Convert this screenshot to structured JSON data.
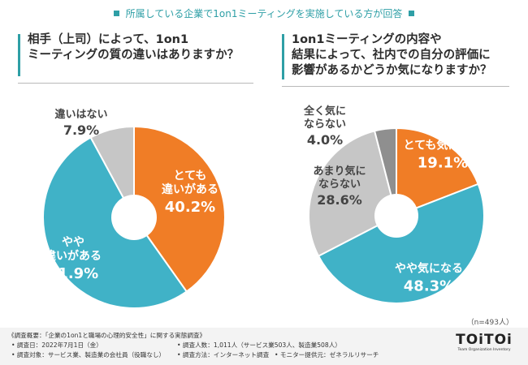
{
  "header": {
    "title": "所属している企業で1on1ミーティングを実施している方が回答"
  },
  "charts": [
    {
      "question_lines": [
        "相手（上司）によって、1on1",
        "ミーティングの質の違いはありますか？"
      ]
    },
    {
      "question_lines": [
        "1on1ミーティングの内容や",
        "結果によって、社内での自分の評価に",
        "影響があるかどうか気になりますか？"
      ]
    }
  ],
  "chart_data": [
    {
      "type": "pie",
      "slices": [
        {
          "label_lines": [
            "とても",
            "違いがある"
          ],
          "value": 40.2,
          "color": "#f07d26"
        },
        {
          "label_lines": [
            "やや",
            "違いがある"
          ],
          "value": 51.9,
          "color": "#40b2c7"
        },
        {
          "label_lines": [
            "違いはない"
          ],
          "value": 7.9,
          "color": "#c6c6c6"
        }
      ]
    },
    {
      "type": "pie",
      "slices": [
        {
          "label_lines": [
            "とても気になる"
          ],
          "value": 19.1,
          "color": "#f07d26"
        },
        {
          "label_lines": [
            "やや気になる"
          ],
          "value": 48.3,
          "color": "#40b2c7"
        },
        {
          "label_lines": [
            "あまり気に",
            "ならない"
          ],
          "value": 28.6,
          "color": "#c6c6c6"
        },
        {
          "label_lines": [
            "全く気に",
            "ならない"
          ],
          "value": 4.0,
          "color": "#8f8f8f"
        }
      ]
    }
  ],
  "n_note": "（n=493人）",
  "footer": {
    "title": "《調査概要：「企業の1on1と職場の心理的安全性」に関する実態調査》",
    "date": "• 調査日：2022年7月1日（金）",
    "target": "• 調査対象：サービス業、製造業の会社員（役職なし）",
    "count": "• 調査人数：1,011人（サービス業503人、製造業508人）",
    "method": "• 調査方法：インターネット調査",
    "provider": "• モニター提供元：ゼネラルリサーチ",
    "logo_main": "TOiTOi",
    "logo_sub": "Team Organization Inventory"
  }
}
